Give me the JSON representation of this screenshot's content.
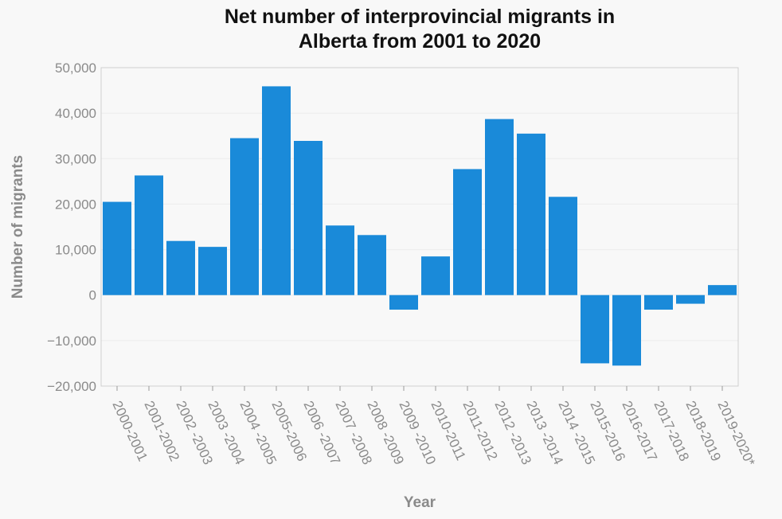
{
  "chart_data": {
    "type": "bar",
    "title": "Net number of interprovincial migrants in\nAlberta from 2001 to 2020",
    "xlabel": "Year",
    "ylabel": "Number of migrants",
    "categories": [
      "2000-2001",
      "2001-2002",
      "2002 -2003",
      "2003 -2004",
      "2004 -2005",
      "2005-2006",
      "2006 -2007",
      "2007 -2008",
      "2008 -2009",
      "2009 -2010",
      "2010-2011",
      "2011-2012",
      "2012 -2013",
      "2013 -2014",
      "2014 -2015",
      "2015-2016",
      "2016-2017",
      "2017-2018",
      "2018-2019",
      "2019-2020*"
    ],
    "values": [
      20500,
      26300,
      11900,
      10600,
      34500,
      45900,
      33900,
      15300,
      13200,
      -3200,
      8500,
      27700,
      38700,
      35500,
      21600,
      -15000,
      -15500,
      -3200,
      -1900,
      2200
    ],
    "ylim": [
      -20000,
      50000
    ],
    "yticks": [
      50000,
      40000,
      30000,
      20000,
      10000,
      0,
      -10000,
      -20000
    ],
    "ytick_labels": [
      "50,000",
      "40,000",
      "30,000",
      "20,000",
      "10,000",
      "0",
      "−10,000",
      "−20,000"
    ],
    "grid": true,
    "bar_color": "#1a8ad9"
  }
}
